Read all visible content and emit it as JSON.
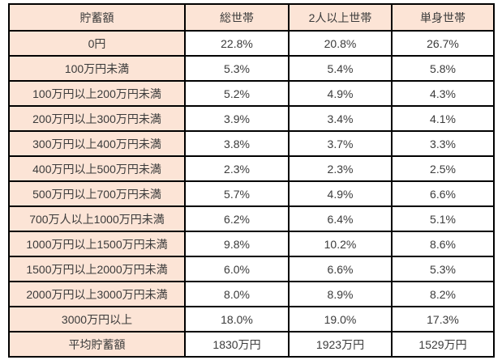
{
  "colors": {
    "header_fill": "#fce4d6",
    "border": "#000000",
    "text": "#3b3b3b",
    "data_cell_fill": "#ffffff"
  },
  "table": {
    "columns": [
      "貯蓄額",
      "総世帯",
      "2人以上世帯",
      "単身世帯"
    ],
    "rows": [
      {
        "label": "0円",
        "values": [
          "22.8%",
          "20.8%",
          "26.7%"
        ]
      },
      {
        "label": "100万円未満",
        "values": [
          "5.3%",
          "5.4%",
          "5.8%"
        ]
      },
      {
        "label": "100万円以上200万円未満",
        "values": [
          "5.2%",
          "4.9%",
          "4.3%"
        ]
      },
      {
        "label": "200万円以上300万円未満",
        "values": [
          "3.9%",
          "3.4%",
          "4.1%"
        ]
      },
      {
        "label": "300万円以上400万円未満",
        "values": [
          "3.8%",
          "3.7%",
          "3.3%"
        ]
      },
      {
        "label": "400万円以上500万円未満",
        "values": [
          "2.3%",
          "2.3%",
          "2.5%"
        ]
      },
      {
        "label": "500万円以上700万円未満",
        "values": [
          "5.7%",
          "4.9%",
          "6.6%"
        ]
      },
      {
        "label": "700万人以上1000万円未満",
        "values": [
          "6.2%",
          "6.4%",
          "5.1%"
        ]
      },
      {
        "label": "1000万円以上1500万円未満",
        "values": [
          "9.8%",
          "10.2%",
          "8.6%"
        ]
      },
      {
        "label": "1500万円以上2000万円未満",
        "values": [
          "6.0%",
          "6.6%",
          "5.3%"
        ]
      },
      {
        "label": "2000万円以上3000万円未満",
        "values": [
          "8.0%",
          "8.9%",
          "8.2%"
        ]
      },
      {
        "label": "3000万円以上",
        "values": [
          "18.0%",
          "19.0%",
          "17.3%"
        ]
      },
      {
        "label": "平均貯蓄額",
        "values": [
          "1830万円",
          "1923万円",
          "1529万円"
        ]
      }
    ]
  },
  "chart_data": {
    "type": "table",
    "title": "",
    "row_header_label": "貯蓄額",
    "categories": [
      "0円",
      "100万円未満",
      "100万円以上200万円未満",
      "200万円以上300万円未満",
      "300万円以上400万円未満",
      "400万円以上500万円未満",
      "500万円以上700万円未満",
      "700万人以上1000万円未満",
      "1000万円以上1500万円未満",
      "1500万円以上2000万円未満",
      "2000万円以上3000万円未満",
      "3000万円以上"
    ],
    "series": [
      {
        "name": "総世帯",
        "values_percent": [
          22.8,
          5.3,
          5.2,
          3.9,
          3.8,
          2.3,
          5.7,
          6.2,
          9.8,
          6.0,
          8.0,
          18.0
        ],
        "average_savings": "1830万円"
      },
      {
        "name": "2人以上世帯",
        "values_percent": [
          20.8,
          5.4,
          4.9,
          3.4,
          3.7,
          2.3,
          4.9,
          6.4,
          10.2,
          6.6,
          8.9,
          19.0
        ],
        "average_savings": "1923万円"
      },
      {
        "name": "単身世帯",
        "values_percent": [
          26.7,
          5.8,
          4.3,
          4.1,
          3.3,
          2.5,
          6.6,
          5.1,
          8.6,
          5.3,
          8.2,
          17.3
        ],
        "average_savings": "1529万円"
      }
    ],
    "footer_row_label": "平均貯蓄額"
  }
}
